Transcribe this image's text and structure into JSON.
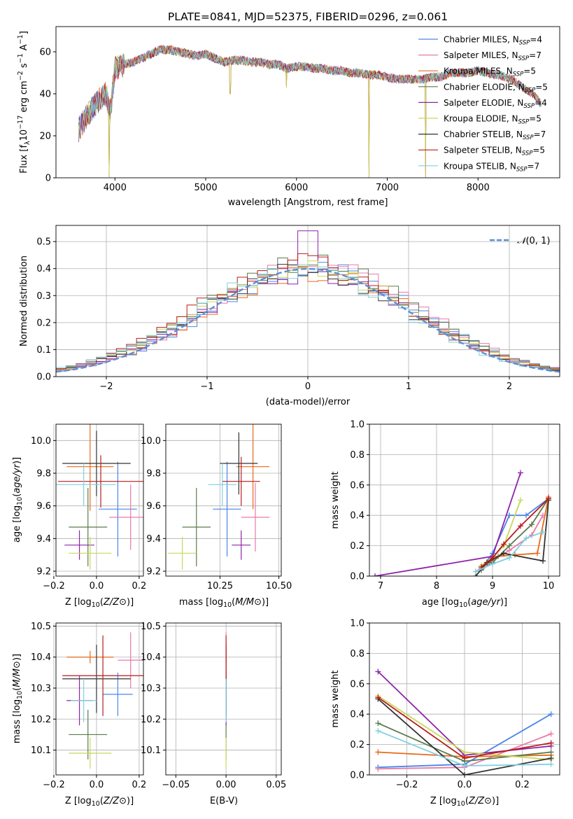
{
  "figure_title": "PLATE=0841, MJD=52375, FIBERID=0296, z=0.061",
  "colors": [
    "#4a86e8",
    "#e87aa8",
    "#e86a1a",
    "#5a7a4a",
    "#8e24aa",
    "#c8d85a",
    "#333333",
    "#b71c1c",
    "#7fd0e0"
  ],
  "chart_data": [
    {
      "id": "spectrum",
      "type": "line",
      "xlabel": "wavelength [Angstrom, rest frame]",
      "ylabel": "Flux [f_λ 10^-17 erg cm^-2 s^-1 A^-1]",
      "ylabel_parts": {
        "base": "Flux [f",
        "sub1": "λ",
        "mid": "10",
        "sup1": "−17",
        "mid2": " erg cm",
        "sup2": "−2",
        "mid3": " s",
        "sup3": "−1",
        "mid4": " A",
        "sup4": "−1",
        "end": "]"
      },
      "xlim": [
        3350,
        8900
      ],
      "ylim": [
        0,
        72
      ],
      "xticks": [
        4000,
        5000,
        6000,
        7000,
        8000
      ],
      "yticks": [
        0,
        20,
        40,
        60
      ],
      "grid": false,
      "legend_position": "top-right",
      "legend": [
        {
          "model": "Chabrier MILES",
          "n": "4"
        },
        {
          "model": "Salpeter MILES",
          "n": "7"
        },
        {
          "model": "Kroupa MILES",
          "n": "5"
        },
        {
          "model": "Chabrier ELODIE",
          "n": "5"
        },
        {
          "model": "Salpeter ELODIE",
          "n": "4"
        },
        {
          "model": "Kroupa ELODIE",
          "n": "5"
        },
        {
          "model": "Chabrier STELIB",
          "n": "7"
        },
        {
          "model": "Salpeter STELIB",
          "n": "5"
        },
        {
          "model": "Kroupa STELIB",
          "n": "7"
        }
      ],
      "legend_n_label": "N",
      "legend_n_sub": "SSP",
      "envelope": {
        "x": [
          3600,
          3700,
          3800,
          3900,
          3950,
          4000,
          4100,
          4200,
          4300,
          4400,
          4500,
          4600,
          4700,
          4800,
          4900,
          5000,
          5100,
          5200,
          5300,
          5400,
          5500,
          5600,
          5700,
          5800,
          5900,
          6000,
          6100,
          6200,
          6300,
          6400,
          6500,
          6600,
          6700,
          6800,
          6900,
          7000,
          7100,
          7200,
          7300,
          7400,
          7500,
          7600,
          7700,
          7800,
          7900,
          8000,
          8100,
          8200,
          8300,
          8400,
          8500,
          8600,
          8700
        ],
        "y": [
          23,
          30,
          36,
          40,
          32,
          52,
          54,
          55,
          57,
          59,
          61,
          61,
          60,
          59,
          58,
          59,
          57,
          55,
          56,
          56,
          55,
          55,
          54,
          54,
          52,
          53,
          53,
          52,
          52,
          51,
          51,
          50,
          50,
          49,
          49,
          48,
          47,
          47,
          47,
          47,
          48,
          48,
          50,
          50,
          50,
          51,
          50,
          49,
          48,
          46,
          43,
          40,
          35
        ]
      },
      "dips": [
        {
          "x": 3934,
          "y": 0
        },
        {
          "x": 5270,
          "y": 40
        },
        {
          "x": 5890,
          "y": 43
        },
        {
          "x": 6800,
          "y": 0
        },
        {
          "x": 7420,
          "y": 0
        }
      ]
    },
    {
      "id": "residuals",
      "type": "bar",
      "xlabel": "(data-model)/error",
      "ylabel": "Normed distribution",
      "xlim": [
        -2.5,
        2.5
      ],
      "ylim": [
        0,
        0.56
      ],
      "xticks": [
        -2,
        -1,
        0,
        1,
        2
      ],
      "yticks": [
        0.0,
        0.1,
        0.2,
        0.3,
        0.4,
        0.5
      ],
      "grid": true,
      "legend_position": "top-right",
      "legend_label": "N(0,1)",
      "gauss_label_script": "𝒩",
      "gauss_label_args": "(0, 1)",
      "bin_edges_start": -2.5,
      "bin_width": 0.1,
      "series_amplitude": [
        1.0,
        1.04,
        0.97,
        1.07,
        0.95,
        1.02,
        0.99,
        1.05,
        0.98
      ]
    },
    {
      "id": "age-vs-Z",
      "type": "scatter",
      "xlabel": "Z [log10(Z/Z⊙)]",
      "ylabel": "age [log10(age/yr)]",
      "xlim": [
        -0.19,
        0.22
      ],
      "ylim": [
        9.17,
        10.1
      ],
      "xticks": [
        -0.2,
        0.0,
        0.2
      ],
      "yticks": [
        9.2,
        9.4,
        9.6,
        9.8,
        10.0
      ],
      "grid": true,
      "points": [
        {
          "x": 0.1,
          "y": 9.58,
          "xerr": 0.09,
          "yerr": 0.29
        },
        {
          "x": 0.16,
          "y": 9.53,
          "xerr": 0.1,
          "yerr": 0.2
        },
        {
          "x": -0.03,
          "y": 9.84,
          "xerr": 0.11,
          "yerr": 0.27
        },
        {
          "x": -0.04,
          "y": 9.47,
          "xerr": 0.09,
          "yerr": 0.24
        },
        {
          "x": -0.08,
          "y": 9.36,
          "xerr": 0.07,
          "yerr": 0.09
        },
        {
          "x": -0.03,
          "y": 9.31,
          "xerr": 0.1,
          "yerr": 0.1
        },
        {
          "x": 0.0,
          "y": 9.86,
          "xerr": 0.16,
          "yerr": 0.2
        },
        {
          "x": 0.02,
          "y": 9.75,
          "xerr": 0.2,
          "yerr": 0.16
        },
        {
          "x": -0.06,
          "y": 9.73,
          "xerr": 0.15,
          "yerr": 0.13
        }
      ]
    },
    {
      "id": "age-vs-mass",
      "type": "scatter",
      "xlabel": "mass [log10(M/M⊙)]",
      "ylabel": "",
      "xlim": [
        10.02,
        10.51
      ],
      "ylim": [
        9.17,
        10.1
      ],
      "xticks": [
        10.25,
        10.5
      ],
      "yticks": [
        9.2,
        9.4,
        9.6,
        9.8,
        10.0
      ],
      "grid": true,
      "points": [
        {
          "x": 10.28,
          "y": 9.58,
          "xerr": 0.06,
          "yerr": 0.29
        },
        {
          "x": 10.4,
          "y": 9.53,
          "xerr": 0.06,
          "yerr": 0.21
        },
        {
          "x": 10.39,
          "y": 9.84,
          "xerr": 0.07,
          "yerr": 0.26
        },
        {
          "x": 10.15,
          "y": 9.47,
          "xerr": 0.06,
          "yerr": 0.24
        },
        {
          "x": 10.34,
          "y": 9.36,
          "xerr": 0.04,
          "yerr": 0.09
        },
        {
          "x": 10.09,
          "y": 9.31,
          "xerr": 0.06,
          "yerr": 0.1
        },
        {
          "x": 10.33,
          "y": 9.86,
          "xerr": 0.08,
          "yerr": 0.19
        },
        {
          "x": 10.34,
          "y": 9.75,
          "xerr": 0.08,
          "yerr": 0.15
        },
        {
          "x": 10.26,
          "y": 9.73,
          "xerr": 0.06,
          "yerr": 0.13
        }
      ]
    },
    {
      "id": "weight-vs-age",
      "type": "line",
      "xlabel": "age [log10(age/yr)]",
      "ylabel": "mass weight",
      "xlim": [
        6.8,
        10.2
      ],
      "ylim": [
        0,
        1.0
      ],
      "xticks": [
        7,
        8,
        9,
        10
      ],
      "yticks": [
        0.0,
        0.2,
        0.4,
        0.6,
        0.8,
        1.0
      ],
      "grid": true,
      "series": [
        {
          "x": [
            8.8,
            9.0,
            9.3,
            9.6,
            10.0
          ],
          "y": [
            0.05,
            0.15,
            0.4,
            0.4,
            0.51
          ]
        },
        {
          "x": [
            8.7,
            9.0,
            9.3,
            9.7,
            9.9
          ],
          "y": [
            0.03,
            0.1,
            0.17,
            0.27,
            0.4
          ]
        },
        {
          "x": [
            8.8,
            9.1,
            9.4,
            9.8,
            10.0
          ],
          "y": [
            0.06,
            0.13,
            0.14,
            0.15,
            0.52
          ]
        },
        {
          "x": [
            8.8,
            9.0,
            9.3,
            9.7,
            10.0
          ],
          "y": [
            0.04,
            0.09,
            0.2,
            0.34,
            0.51
          ]
        },
        {
          "x": [
            6.9,
            9.0,
            9.5
          ],
          "y": [
            0.0,
            0.13,
            0.68
          ]
        },
        {
          "x": [
            8.8,
            9.0,
            9.2,
            9.5
          ],
          "y": [
            0.07,
            0.12,
            0.2,
            0.5
          ]
        },
        {
          "x": [
            8.7,
            8.9,
            9.2,
            9.9,
            10.0
          ],
          "y": [
            0.0,
            0.09,
            0.15,
            0.1,
            0.5
          ]
        },
        {
          "x": [
            8.8,
            9.0,
            9.2,
            9.5,
            10.0
          ],
          "y": [
            0.06,
            0.12,
            0.21,
            0.33,
            0.51
          ]
        },
        {
          "x": [
            8.7,
            9.0,
            9.3,
            9.6,
            9.9
          ],
          "y": [
            0.03,
            0.08,
            0.12,
            0.25,
            0.29
          ]
        }
      ]
    },
    {
      "id": "mass-vs-Z",
      "type": "scatter",
      "xlabel": "Z [log10(Z/Z⊙)]",
      "ylabel": "mass [log10(M/M⊙)]",
      "xlim": [
        -0.19,
        0.22
      ],
      "ylim": [
        10.02,
        10.51
      ],
      "xticks": [
        -0.2,
        0.0,
        0.2
      ],
      "yticks": [
        10.1,
        10.2,
        10.3,
        10.4,
        10.5
      ],
      "grid": true,
      "points": [
        {
          "x": 0.1,
          "y": 10.28,
          "xerr": 0.07,
          "yerr": 0.07
        },
        {
          "x": 0.16,
          "y": 10.39,
          "xerr": 0.06,
          "yerr": 0.09
        },
        {
          "x": -0.03,
          "y": 10.4,
          "xerr": 0.11,
          "yerr": 0.02
        },
        {
          "x": -0.04,
          "y": 10.15,
          "xerr": 0.09,
          "yerr": 0.08
        },
        {
          "x": -0.08,
          "y": 10.26,
          "xerr": 0.06,
          "yerr": 0.08
        },
        {
          "x": -0.03,
          "y": 10.09,
          "xerr": 0.1,
          "yerr": 0.05
        },
        {
          "x": 0.0,
          "y": 10.33,
          "xerr": 0.16,
          "yerr": 0.11
        },
        {
          "x": 0.03,
          "y": 10.34,
          "xerr": 0.19,
          "yerr": 0.13
        },
        {
          "x": -0.06,
          "y": 10.26,
          "xerr": 0.06,
          "yerr": 0.07
        }
      ]
    },
    {
      "id": "mass-vs-ebv",
      "type": "scatter",
      "xlabel": "E(B-V)",
      "ylabel": "",
      "xlim": [
        -0.06,
        0.055
      ],
      "ylim": [
        10.02,
        10.51
      ],
      "xticks": [
        -0.05,
        0.0,
        0.05
      ],
      "yticks": [
        10.1,
        10.2,
        10.3,
        10.4,
        10.5
      ],
      "grid": true,
      "points": [
        {
          "x": 0.0,
          "y": 10.28,
          "xerr": 0.0,
          "yerr": 0.07
        },
        {
          "x": 0.0,
          "y": 10.39,
          "xerr": 0.0,
          "yerr": 0.09
        },
        {
          "x": 0.0,
          "y": 10.4,
          "xerr": 0.0,
          "yerr": 0.02
        },
        {
          "x": 0.0,
          "y": 10.15,
          "xerr": 0.0,
          "yerr": 0.08
        },
        {
          "x": 0.0,
          "y": 10.26,
          "xerr": 0.0,
          "yerr": 0.08
        },
        {
          "x": 0.0,
          "y": 10.09,
          "xerr": 0.0,
          "yerr": 0.05
        },
        {
          "x": 0.0,
          "y": 10.33,
          "xerr": 0.0,
          "yerr": 0.11
        },
        {
          "x": 0.0,
          "y": 10.34,
          "xerr": 0.0,
          "yerr": 0.13
        },
        {
          "x": 0.0,
          "y": 10.26,
          "xerr": 0.0,
          "yerr": 0.07
        }
      ]
    },
    {
      "id": "weight-vs-Z",
      "type": "line",
      "xlabel": "Z [log10(Z/Z⊙)]",
      "ylabel": "mass weight",
      "xlim": [
        -0.33,
        0.33
      ],
      "ylim": [
        0,
        1.0
      ],
      "xticks": [
        -0.2,
        0.0,
        0.2
      ],
      "yticks": [
        0.0,
        0.2,
        0.4,
        0.6,
        0.8,
        1.0
      ],
      "grid": true,
      "series": [
        {
          "x": [
            -0.3,
            0.0,
            0.3
          ],
          "y": [
            0.05,
            0.07,
            0.4
          ]
        },
        {
          "x": [
            -0.3,
            0.0,
            0.3
          ],
          "y": [
            0.04,
            0.05,
            0.27
          ]
        },
        {
          "x": [
            -0.3,
            0.0,
            0.3
          ],
          "y": [
            0.15,
            0.12,
            0.13
          ]
        },
        {
          "x": [
            -0.3,
            0.0,
            0.3
          ],
          "y": [
            0.34,
            0.09,
            0.15
          ]
        },
        {
          "x": [
            -0.3,
            0.0,
            0.3
          ],
          "y": [
            0.68,
            0.13,
            0.19
          ]
        },
        {
          "x": [
            -0.3,
            0.0,
            0.3
          ],
          "y": [
            0.52,
            0.15,
            0.1
          ]
        },
        {
          "x": [
            -0.3,
            0.0,
            0.3
          ],
          "y": [
            0.5,
            0.0,
            0.11
          ]
        },
        {
          "x": [
            -0.3,
            0.0,
            0.3
          ],
          "y": [
            0.51,
            0.11,
            0.21
          ]
        },
        {
          "x": [
            -0.3,
            0.0,
            0.3
          ],
          "y": [
            0.29,
            0.06,
            0.07
          ]
        }
      ]
    }
  ]
}
